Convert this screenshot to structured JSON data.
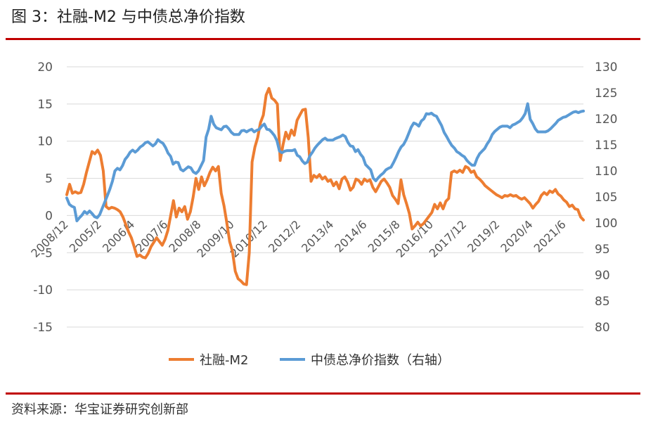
{
  "header": {
    "title": "图 3：社融-M2 与中债总净价指数"
  },
  "footer": {
    "source": "资料来源：华宝证券研究创新部"
  },
  "colors": {
    "rule": "#c00000",
    "series_orange": "#ed7d31",
    "series_blue": "#5b9bd5",
    "grid": "#d9d9d9"
  },
  "chart_data": {
    "type": "line",
    "title": "",
    "xlabel": "",
    "ylabel": "",
    "grid": true,
    "legend_position": "bottom",
    "x_ticks": [
      "2008/12",
      "2005/2",
      "2006/4",
      "2007/6",
      "2008/8",
      "2009/10",
      "2010/12",
      "2012/2",
      "2013/4",
      "2014/6",
      "2015/8",
      "2016/10",
      "2017/12",
      "2019/2",
      "2020/4",
      "2021/6"
    ],
    "y_left": {
      "ticks": [
        20,
        15,
        10,
        5,
        0,
        -5,
        -10,
        -15
      ],
      "ylim": [
        -15,
        20
      ]
    },
    "y_right": {
      "ticks": [
        130,
        125,
        120,
        115,
        110,
        105,
        100,
        95,
        90,
        85,
        80
      ],
      "ylim": [
        80,
        130
      ]
    },
    "series": [
      {
        "name": "社融-M2",
        "axis": "left",
        "color": "#ed7d31",
        "values": [
          2.8,
          4.2,
          3.0,
          3.2,
          3.0,
          3.1,
          4.2,
          5.8,
          7.2,
          8.6,
          8.3,
          8.8,
          8.1,
          6.0,
          1.2,
          0.9,
          1.1,
          1.0,
          0.8,
          0.5,
          -0.2,
          -1.2,
          -2.2,
          -3.0,
          -4.2,
          -5.5,
          -5.3,
          -5.6,
          -5.7,
          -5.1,
          -4.2,
          -3.6,
          -3.0,
          -3.5,
          -4.0,
          -3.2,
          -2.0,
          0.0,
          2.0,
          -0.2,
          1.0,
          0.5,
          1.2,
          -0.5,
          0.5,
          2.5,
          5.0,
          3.5,
          5.2,
          4.0,
          4.8,
          5.8,
          6.5,
          6.0,
          6.6,
          3.0,
          1.3,
          -1.0,
          -3.5,
          -4.8,
          -7.5,
          -8.5,
          -8.8,
          -9.2,
          -9.3,
          -5.0,
          7.2,
          9.2,
          10.5,
          12.5,
          13.5,
          16.2,
          17.1,
          15.8,
          15.5,
          15.0,
          7.4,
          9.5,
          11.2,
          10.3,
          11.5,
          10.8,
          12.8,
          13.5,
          14.2,
          14.3,
          10.5,
          4.6,
          5.4,
          5.1,
          5.5,
          4.9,
          5.2,
          4.6,
          4.8,
          4.0,
          4.5,
          3.6,
          4.9,
          5.2,
          4.5,
          3.4,
          3.8,
          4.9,
          4.7,
          4.2,
          4.9,
          4.6,
          4.8,
          3.8,
          3.2,
          3.9,
          4.6,
          4.9,
          4.4,
          3.8,
          2.7,
          2.2,
          1.6,
          4.8,
          2.8,
          1.6,
          0.3,
          -1.8,
          -1.4,
          -0.9,
          -1.4,
          -1.1,
          -0.6,
          -0.1,
          0.4,
          1.5,
          0.9,
          1.7,
          0.9,
          1.9,
          2.3,
          5.8,
          6.0,
          5.8,
          6.1,
          5.8,
          6.6,
          6.4,
          5.8,
          6.0,
          5.2,
          4.9,
          4.5,
          4.0,
          3.7,
          3.4,
          3.1,
          2.8,
          2.6,
          2.4,
          2.7,
          2.6,
          2.8,
          2.6,
          2.7,
          2.4,
          2.2,
          2.4,
          2.0,
          1.6,
          1.0,
          1.5,
          1.9,
          2.7,
          3.1,
          2.8,
          3.3,
          3.1,
          3.5,
          2.9,
          2.6,
          2.1,
          1.8,
          1.2,
          1.4,
          0.9,
          0.8,
          -0.2,
          -0.6
        ]
      },
      {
        "name": "中债总净价指数（右轴）",
        "axis": "right",
        "color": "#5b9bd5",
        "values": [
          104.8,
          103.6,
          103.2,
          103.0,
          100.4,
          101.0,
          101.5,
          102.2,
          101.8,
          102.3,
          101.8,
          101.2,
          101.0,
          101.6,
          102.8,
          104.0,
          105.2,
          106.5,
          108.0,
          110.0,
          110.5,
          110.2,
          111.0,
          112.2,
          112.8,
          113.6,
          114.0,
          113.6,
          114.0,
          114.6,
          114.9,
          115.4,
          115.6,
          115.2,
          114.8,
          115.2,
          116.0,
          115.6,
          115.3,
          114.5,
          113.4,
          112.8,
          111.3,
          111.7,
          111.6,
          110.3,
          110.0,
          110.4,
          110.8,
          110.6,
          109.8,
          109.5,
          110.0,
          111.0,
          112.0,
          116.5,
          118.0,
          120.5,
          119.0,
          118.3,
          118.1,
          117.9,
          118.5,
          118.6,
          118.1,
          117.4,
          117.0,
          117.0,
          117.0,
          117.7,
          117.8,
          117.5,
          117.8,
          118.0,
          117.5,
          117.8,
          118.0,
          118.6,
          119.0,
          118.0,
          117.9,
          117.4,
          116.8,
          115.8,
          113.8,
          113.5,
          113.8,
          113.9,
          113.9,
          113.9,
          114.1,
          113.0,
          112.7,
          111.9,
          111.4,
          111.7,
          112.9,
          113.6,
          114.4,
          115.0,
          115.5,
          116.0,
          116.3,
          115.9,
          115.9,
          115.9,
          116.2,
          116.4,
          116.6,
          116.9,
          116.6,
          115.5,
          114.8,
          114.7,
          113.7,
          114.1,
          113.2,
          112.6,
          111.2,
          110.7,
          110.2,
          108.6,
          108.1,
          108.7,
          109.2,
          109.6,
          110.2,
          110.5,
          110.7,
          111.6,
          112.6,
          113.7,
          114.6,
          115.1,
          116.0,
          117.2,
          118.4,
          119.2,
          119.0,
          118.6,
          119.6,
          120.0,
          121.0,
          120.9,
          121.1,
          120.7,
          120.5,
          119.6,
          118.7,
          117.4,
          116.6,
          115.7,
          114.9,
          114.4,
          113.7,
          113.4,
          113.0,
          112.7,
          112.0,
          111.5,
          111.1,
          111.1,
          112.4,
          113.3,
          113.8,
          114.3,
          115.2,
          115.9,
          117.0,
          117.6,
          118.0,
          118.4,
          118.6,
          118.6,
          118.6,
          118.3,
          118.8,
          119.0,
          119.3,
          119.6,
          120.2,
          121.0,
          122.9,
          119.9,
          119.1,
          118.1,
          117.5,
          117.5,
          117.5,
          117.5,
          117.7,
          118.1,
          118.6,
          119.1,
          119.7,
          120.0,
          120.3,
          120.4,
          120.7,
          121.0,
          121.3,
          121.4,
          121.2,
          121.4,
          121.5
        ]
      }
    ]
  }
}
